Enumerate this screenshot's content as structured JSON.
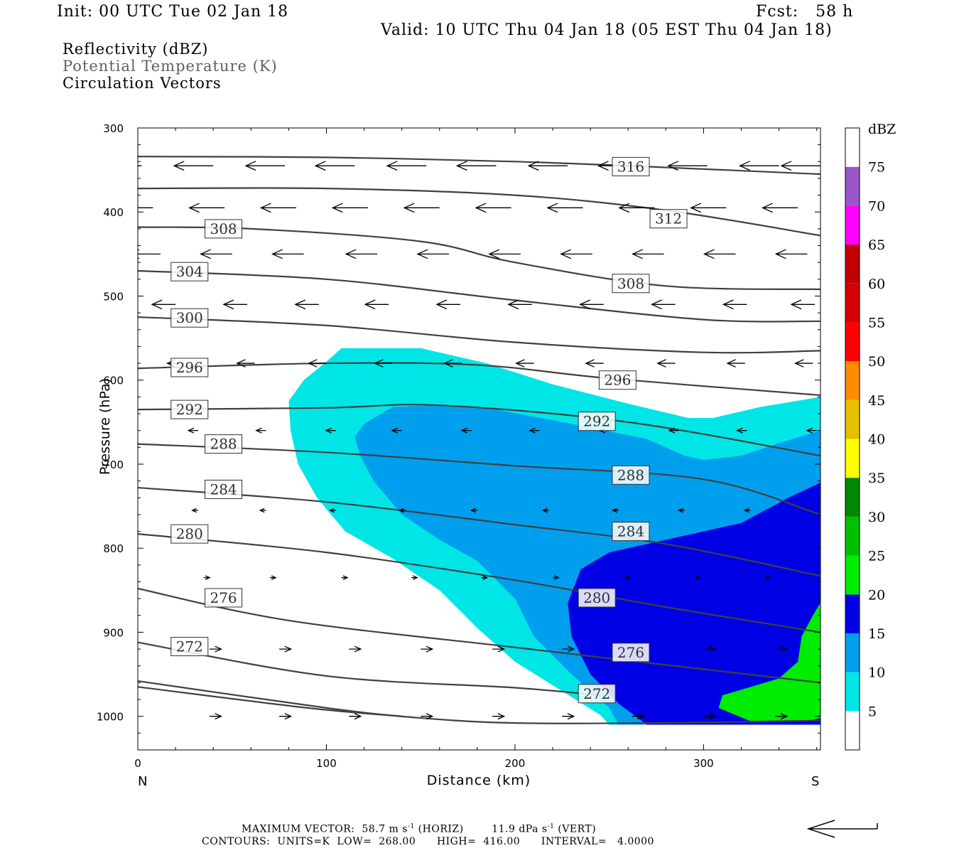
{
  "header": {
    "init": "Init: 00 UTC Tue 02 Jan 18",
    "fcst": "Fcst:   58 h",
    "valid": "Valid: 10 UTC Thu 04 Jan 18 (05 EST Thu 04 Jan 18)",
    "field1": "Reflectivity (dBZ)",
    "field2": "Potential Temperature (K)",
    "field3": "Circulation Vectors"
  },
  "footer": {
    "max_vector_label": "MAXIMUM VECTOR:",
    "max_vector_value": "58.7 m s",
    "horiz_exp": "-1",
    "horiz_label": "(HORIZ)",
    "vert_value": "11.9 dPa s",
    "vert_exp": "-1",
    "vert_label": "(VERT)",
    "contours_label": "CONTOURS:",
    "units": "UNITS=K",
    "low_label": "LOW=",
    "low": "268.00",
    "high_label": "HIGH=",
    "high": "416.00",
    "interval_label": "INTERVAL=",
    "interval": "4.0000"
  },
  "colors": {
    "c5": "#00e6e6",
    "c10": "#009fee",
    "c15": "#0000e4",
    "c20": "#00ec00",
    "contour": "#404040"
  },
  "chart_data": {
    "type": "cross-section",
    "xlabel": "Distance (km)",
    "ylabel": "Pressure (hPa)",
    "x_range": [
      0,
      362
    ],
    "y_range": [
      300,
      1040
    ],
    "x_ticks": [
      0,
      100,
      200,
      300
    ],
    "y_ticks": [
      300,
      400,
      500,
      600,
      700,
      800,
      900,
      1000
    ],
    "x_end_labels": {
      "left": "N",
      "right": "S"
    },
    "colorbar": {
      "unit": "dBZ",
      "ticks": [
        5,
        10,
        15,
        20,
        25,
        30,
        35,
        40,
        45,
        50,
        55,
        60,
        65,
        70,
        75
      ],
      "colors": [
        "#ffffff",
        "#00e6e6",
        "#009fee",
        "#0000e4",
        "#00ec00",
        "#00c000",
        "#008800",
        "#ffff00",
        "#e6c000",
        "#ff8c00",
        "#ff0000",
        "#d60000",
        "#c00000",
        "#ff00ff",
        "#9858c8",
        "#ffffff"
      ]
    },
    "reflectivity": [
      {
        "dbz": 5,
        "polygon": [
          [
            80,
            625
          ],
          [
            88,
            600
          ],
          [
            100,
            578
          ],
          [
            108,
            562
          ],
          [
            150,
            562
          ],
          [
            185,
            580
          ],
          [
            220,
            605
          ],
          [
            260,
            628
          ],
          [
            292,
            645
          ],
          [
            305,
            645
          ],
          [
            330,
            632
          ],
          [
            362,
            620
          ],
          [
            362,
            1010
          ],
          [
            250,
            1010
          ],
          [
            245,
            998
          ],
          [
            225,
            970
          ],
          [
            200,
            935
          ],
          [
            180,
            895
          ],
          [
            160,
            850
          ],
          [
            135,
            812
          ],
          [
            110,
            780
          ],
          [
            95,
            740
          ],
          [
            85,
            700
          ],
          [
            81,
            660
          ]
        ]
      },
      {
        "dbz": 10,
        "polygon": [
          [
            115,
            668
          ],
          [
            120,
            652
          ],
          [
            135,
            632
          ],
          [
            155,
            630
          ],
          [
            190,
            635
          ],
          [
            230,
            652
          ],
          [
            270,
            670
          ],
          [
            290,
            690
          ],
          [
            300,
            695
          ],
          [
            320,
            690
          ],
          [
            340,
            675
          ],
          [
            362,
            660
          ],
          [
            362,
            1010
          ],
          [
            255,
            1010
          ],
          [
            250,
            990
          ],
          [
            230,
            950
          ],
          [
            210,
            905
          ],
          [
            200,
            860
          ],
          [
            180,
            815
          ],
          [
            160,
            790
          ],
          [
            140,
            760
          ],
          [
            125,
            720
          ],
          [
            118,
            690
          ]
        ]
      },
      {
        "dbz": 15,
        "polygon": [
          [
            235,
            825
          ],
          [
            250,
            805
          ],
          [
            270,
            795
          ],
          [
            300,
            780
          ],
          [
            320,
            770
          ],
          [
            345,
            740
          ],
          [
            362,
            722
          ],
          [
            362,
            1010
          ],
          [
            270,
            1010
          ],
          [
            255,
            985
          ],
          [
            240,
            950
          ],
          [
            230,
            905
          ],
          [
            228,
            865
          ]
        ]
      },
      {
        "dbz": 20,
        "polygon": [
          [
            308,
            990
          ],
          [
            310,
            975
          ],
          [
            325,
            965
          ],
          [
            340,
            955
          ],
          [
            350,
            935
          ],
          [
            352,
            905
          ],
          [
            358,
            880
          ],
          [
            362,
            865
          ],
          [
            362,
            1002
          ],
          [
            355,
            1006
          ],
          [
            325,
            1006
          ]
        ]
      }
    ],
    "theta_contours": [
      {
        "value": 316,
        "points": [
          [
            0,
            334
          ],
          [
            100,
            335
          ],
          [
            200,
            340
          ],
          [
            280,
            347
          ],
          [
            362,
            355
          ]
        ],
        "label_at": [
          252,
          346
        ]
      },
      {
        "value": 312,
        "points": [
          [
            0,
            372
          ],
          [
            100,
            372
          ],
          [
            200,
            380
          ],
          [
            280,
            398
          ],
          [
            362,
            428
          ]
        ],
        "label_at": [
          272,
          408
        ]
      },
      {
        "value": 308,
        "points": [
          [
            0,
            418
          ],
          [
            60,
            420
          ],
          [
            150,
            435
          ],
          [
            200,
            460
          ],
          [
            280,
            488
          ],
          [
            362,
            492
          ]
        ],
        "label_at": [
          36,
          420
        ]
      },
      {
        "value": 308,
        "points": [
          [
            0,
            418
          ],
          [
            60,
            420
          ],
          [
            150,
            435
          ],
          [
            200,
            460
          ],
          [
            280,
            488
          ],
          [
            362,
            492
          ]
        ],
        "label_at": [
          252,
          485
        ]
      },
      {
        "value": 304,
        "points": [
          [
            0,
            470
          ],
          [
            100,
            480
          ],
          [
            200,
            505
          ],
          [
            300,
            528
          ],
          [
            362,
            530
          ]
        ],
        "label_at": [
          18,
          471
        ]
      },
      {
        "value": 300,
        "points": [
          [
            0,
            525
          ],
          [
            100,
            535
          ],
          [
            200,
            555
          ],
          [
            300,
            567
          ],
          [
            362,
            565
          ]
        ],
        "label_at": [
          18,
          526
        ]
      },
      {
        "value": 296,
        "points": [
          [
            0,
            586
          ],
          [
            100,
            580
          ],
          [
            180,
            582
          ],
          [
            250,
            598
          ],
          [
            362,
            618
          ]
        ],
        "label_at": [
          18,
          585
        ]
      },
      {
        "value": 296,
        "points": [
          [
            0,
            586
          ],
          [
            100,
            580
          ],
          [
            180,
            582
          ],
          [
            250,
            598
          ],
          [
            362,
            618
          ]
        ],
        "label_at": [
          245,
          600
        ]
      },
      {
        "value": 292,
        "points": [
          [
            0,
            635
          ],
          [
            100,
            633
          ],
          [
            160,
            630
          ],
          [
            260,
            650
          ],
          [
            362,
            690
          ]
        ],
        "label_at": [
          18,
          635
        ]
      },
      {
        "value": 292,
        "points": [
          [
            0,
            635
          ],
          [
            100,
            633
          ],
          [
            160,
            630
          ],
          [
            260,
            650
          ],
          [
            362,
            690
          ]
        ],
        "label_at": [
          234,
          649
        ]
      },
      {
        "value": 288,
        "points": [
          [
            0,
            676
          ],
          [
            100,
            686
          ],
          [
            200,
            702
          ],
          [
            300,
            718
          ],
          [
            362,
            760
          ]
        ],
        "label_at": [
          36,
          676
        ]
      },
      {
        "value": 288,
        "points": [
          [
            0,
            676
          ],
          [
            100,
            686
          ],
          [
            200,
            702
          ],
          [
            300,
            718
          ],
          [
            362,
            760
          ]
        ],
        "label_at": [
          252,
          713
        ]
      },
      {
        "value": 284,
        "points": [
          [
            0,
            728
          ],
          [
            100,
            745
          ],
          [
            200,
            772
          ],
          [
            280,
            795
          ],
          [
            362,
            833
          ]
        ],
        "label_at": [
          36,
          730
        ]
      },
      {
        "value": 284,
        "points": [
          [
            0,
            728
          ],
          [
            100,
            745
          ],
          [
            200,
            772
          ],
          [
            280,
            795
          ],
          [
            362,
            833
          ]
        ],
        "label_at": [
          252,
          780
        ]
      },
      {
        "value": 280,
        "points": [
          [
            0,
            783
          ],
          [
            100,
            805
          ],
          [
            200,
            838
          ],
          [
            280,
            870
          ],
          [
            362,
            900
          ]
        ],
        "label_at": [
          18,
          783
        ]
      },
      {
        "value": 280,
        "points": [
          [
            0,
            783
          ],
          [
            100,
            805
          ],
          [
            200,
            838
          ],
          [
            280,
            870
          ],
          [
            362,
            900
          ]
        ],
        "label_at": [
          234,
          859
        ]
      },
      {
        "value": 276,
        "points": [
          [
            0,
            848
          ],
          [
            80,
            886
          ],
          [
            200,
            918
          ],
          [
            300,
            944
          ],
          [
            362,
            960
          ]
        ],
        "label_at": [
          36,
          859
        ]
      },
      {
        "value": 276,
        "points": [
          [
            0,
            848
          ],
          [
            80,
            886
          ],
          [
            200,
            918
          ],
          [
            300,
            944
          ],
          [
            362,
            960
          ]
        ],
        "label_at": [
          252,
          924
        ]
      },
      {
        "value": 272,
        "points": [
          [
            0,
            912
          ],
          [
            100,
            952
          ],
          [
            200,
            966
          ],
          [
            245,
            975
          ]
        ],
        "label_at": [
          18,
          917
        ]
      },
      {
        "value": 272,
        "points": [
          [
            0,
            912
          ],
          [
            100,
            952
          ],
          [
            200,
            966
          ],
          [
            245,
            975
          ]
        ],
        "label_at": [
          234,
          973
        ]
      },
      {
        "value": 268,
        "points": [
          [
            0,
            958
          ],
          [
            100,
            990
          ],
          [
            150,
            1002
          ],
          [
            200,
            1008
          ],
          [
            270,
            1008
          ],
          [
            362,
            1005
          ]
        ],
        "label_at": null
      },
      {
        "value": 268,
        "points": [
          [
            0,
            965
          ],
          [
            90,
            990
          ],
          [
            140,
            1000
          ]
        ],
        "label_at": null
      }
    ],
    "vectors": [
      {
        "p": 345,
        "x": [
          2,
          40,
          78,
          115,
          153,
          190,
          228,
          265,
          302,
          340,
          362
        ],
        "dx": -1.0
      },
      {
        "p": 395,
        "x": [
          8,
          46,
          84,
          122,
          160,
          198,
          236,
          274,
          312,
          350
        ],
        "dx": -0.9
      },
      {
        "p": 450,
        "x": [
          12,
          50,
          88,
          127,
          165,
          203,
          241,
          279,
          317,
          355
        ],
        "dx": -0.8
      },
      {
        "p": 510,
        "x": [
          20,
          58,
          96,
          133,
          171,
          209,
          247,
          285,
          323,
          359
        ],
        "dx": -0.6
      },
      {
        "p": 580,
        "x": [
          25,
          62,
          100,
          135,
          172,
          210,
          247,
          285,
          322,
          358
        ],
        "dx": -0.45
      },
      {
        "p": 660,
        "x": [
          32,
          68,
          105,
          140,
          177,
          213,
          250,
          287,
          323,
          360
        ],
        "dx": -0.25
      },
      {
        "p": 755,
        "x": [
          32,
          68,
          105,
          142,
          180,
          218,
          255,
          290,
          325
        ],
        "dx": -0.15
      },
      {
        "p": 835,
        "x": [
          35,
          70,
          108,
          145,
          182,
          220,
          258,
          295,
          332
        ],
        "dx": 0.15
      },
      {
        "p": 920,
        "x": [
          38,
          75,
          112,
          150,
          188,
          225,
          262,
          300,
          338
        ],
        "dx": 0.3
      },
      {
        "p": 1000,
        "x": [
          38,
          75,
          112,
          150,
          188,
          225,
          262,
          300,
          338
        ],
        "dx": 0.3
      }
    ]
  }
}
